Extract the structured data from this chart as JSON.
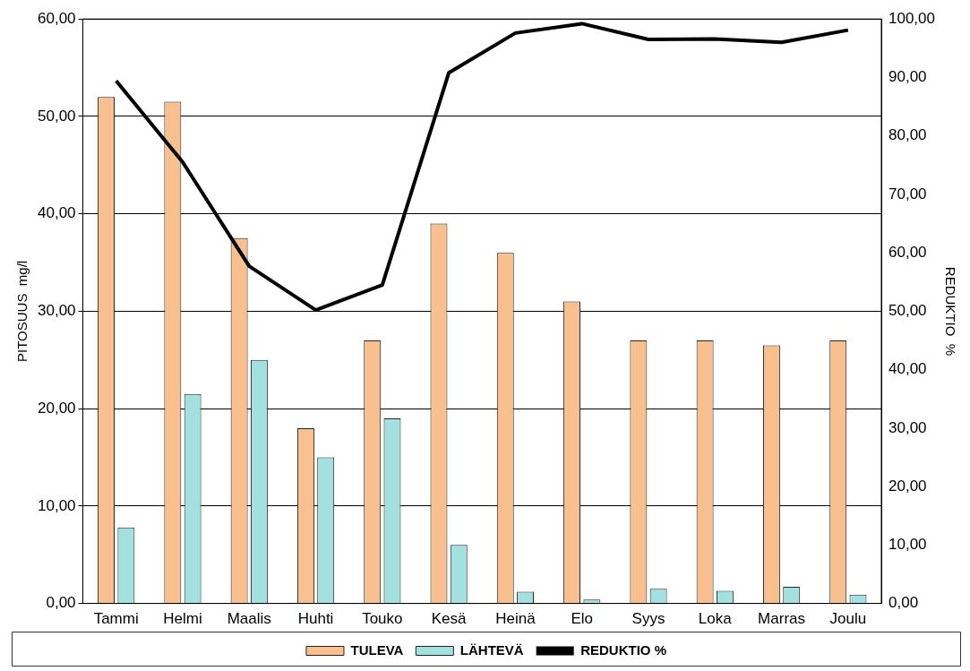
{
  "chart_data": {
    "type": "bar",
    "ylabel": "PITOSUUS  mg/l",
    "y2label": "REDUKTIO  %",
    "categories": [
      "Tammi",
      "Helmi",
      "Maalis",
      "Huhti",
      "Touko",
      "Kesä",
      "Heinä",
      "Elo",
      "Syys",
      "Loka",
      "Marras",
      "Joulu"
    ],
    "series": [
      {
        "name": "TULEVA",
        "color": "#f9c08f",
        "values": [
          52,
          51.5,
          37.5,
          18,
          27,
          39,
          36,
          31,
          27,
          27,
          26.5,
          27
        ]
      },
      {
        "name": "LÄHTEVÄ",
        "color": "#a3e0e0",
        "values": [
          7.8,
          21.5,
          25,
          15,
          19,
          6,
          1.2,
          0.4,
          1.5,
          1.3,
          1.7,
          0.9
        ]
      },
      {
        "name": "REDUKTIO %",
        "type": "line",
        "axis": "y2",
        "color": "#000000",
        "values": [
          89.4,
          75.5,
          57.7,
          50.2,
          54.5,
          90.8,
          97.6,
          99.2,
          96.5,
          96.6,
          96,
          98.1
        ]
      }
    ],
    "ylim": [
      0,
      60
    ],
    "yticks": [
      {
        "value": 0,
        "label": "0,00"
      },
      {
        "value": 10,
        "label": "10,00"
      },
      {
        "value": 20,
        "label": "20,00"
      },
      {
        "value": 30,
        "label": "30,00"
      },
      {
        "value": 40,
        "label": "40,00"
      },
      {
        "value": 50,
        "label": "50,00"
      },
      {
        "value": 60,
        "label": "60,00"
      }
    ],
    "y2lim": [
      0,
      100
    ],
    "y2ticks": [
      {
        "value": 0,
        "label": "0,00"
      },
      {
        "value": 10,
        "label": "10,00"
      },
      {
        "value": 20,
        "label": "20,00"
      },
      {
        "value": 30,
        "label": "30,00"
      },
      {
        "value": 40,
        "label": "40,00"
      },
      {
        "value": 50,
        "label": "50,00"
      },
      {
        "value": 60,
        "label": "60,00"
      },
      {
        "value": 70,
        "label": "70,00"
      },
      {
        "value": 80,
        "label": "80,00"
      },
      {
        "value": 90,
        "label": "90,00"
      },
      {
        "value": 100,
        "label": "100,00"
      }
    ],
    "grid": "y",
    "legend": "bottom",
    "marker": "none",
    "line_style": "solid"
  }
}
